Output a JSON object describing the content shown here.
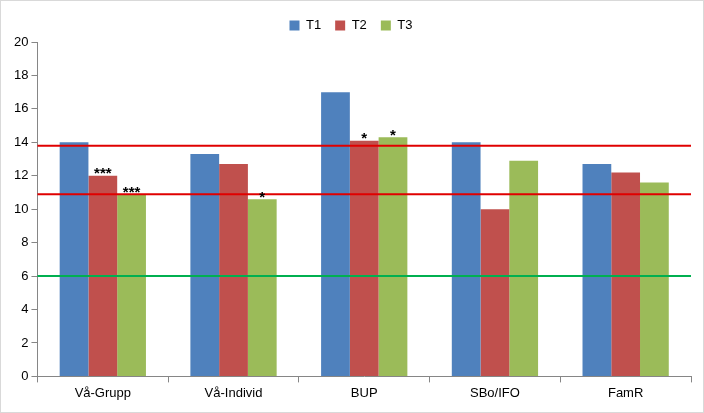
{
  "chart_data": {
    "type": "bar",
    "categories": [
      "Vå-Grupp",
      "Vå-Individ",
      "BUP",
      "SBo/IFO",
      "FamR"
    ],
    "series": [
      {
        "name": "T1",
        "color": "#4f81bd",
        "values": [
          14.0,
          13.3,
          17.0,
          14.0,
          12.7
        ]
      },
      {
        "name": "T2",
        "color": "#c0504d",
        "values": [
          12.0,
          12.7,
          14.1,
          10.0,
          12.2
        ]
      },
      {
        "name": "T3",
        "color": "#9bbb59",
        "values": [
          10.9,
          10.6,
          14.3,
          12.9,
          11.6
        ]
      }
    ],
    "ylim": [
      0,
      20
    ],
    "yticks": [
      0,
      2,
      4,
      6,
      8,
      10,
      12,
      14,
      16,
      18,
      20
    ],
    "grid": false,
    "legend": "top",
    "reference_lines": [
      {
        "value": 13.8,
        "color": "#e00000"
      },
      {
        "value": 10.9,
        "color": "#e00000"
      },
      {
        "value": 6,
        "color": "#00b050"
      }
    ],
    "annotations": [
      {
        "category": "Vå-Grupp",
        "series": "T2",
        "text": "***"
      },
      {
        "category": "Vå-Grupp",
        "series": "T3",
        "text": "***"
      },
      {
        "category": "Vå-Individ",
        "series": "T3",
        "text": "*"
      },
      {
        "category": "BUP",
        "series": "T2",
        "text": "*"
      },
      {
        "category": "BUP",
        "series": "T3",
        "text": "*"
      }
    ]
  }
}
